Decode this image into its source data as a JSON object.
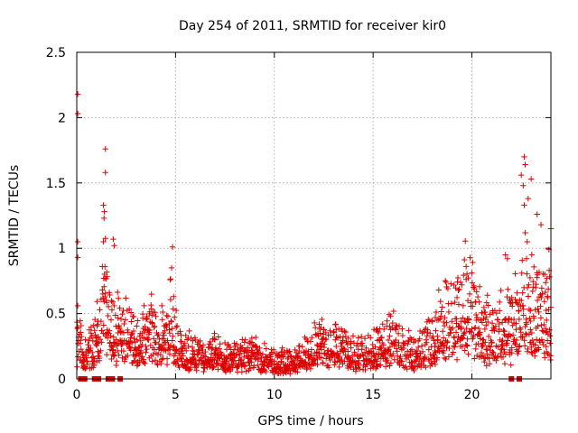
{
  "chart_data": {
    "type": "scatter",
    "title": "Day 254 of 2011, SRMTID for receiver kir0",
    "xlabel": "GPS time / hours",
    "ylabel": "SRMTID / TECUs",
    "xlim": [
      0,
      24
    ],
    "ylim": [
      0,
      2.5
    ],
    "xticks": [
      0,
      5,
      10,
      15,
      20
    ],
    "yticks": [
      0,
      0.5,
      1,
      1.5,
      2,
      2.5
    ],
    "grid": true,
    "marker": "+",
    "series": [
      {
        "name": "SRMTID",
        "color": "#dd0000",
        "points_note": "approximate reconstruction of dense scatter",
        "spikes": [
          [
            0.05,
            2.18
          ],
          [
            0.05,
            2.03
          ],
          [
            0.05,
            1.05
          ],
          [
            0.05,
            0.93
          ],
          [
            0.05,
            0.56
          ],
          [
            1.45,
            1.76
          ],
          [
            1.45,
            1.58
          ],
          [
            1.35,
            1.33
          ],
          [
            1.4,
            1.28
          ],
          [
            1.38,
            1.23
          ],
          [
            1.35,
            1.05
          ],
          [
            1.85,
            1.07
          ],
          [
            1.9,
            1.02
          ],
          [
            4.85,
            1.01
          ],
          [
            4.8,
            0.85
          ],
          [
            22.65,
            1.7
          ],
          [
            22.7,
            1.64
          ],
          [
            22.5,
            1.56
          ],
          [
            22.6,
            1.48
          ],
          [
            23.0,
            1.53
          ],
          [
            22.85,
            1.38
          ],
          [
            22.65,
            1.33
          ],
          [
            23.3,
            1.26
          ],
          [
            23.5,
            1.18
          ],
          [
            24.0,
            1.15
          ],
          [
            23.9,
            0.99
          ],
          [
            22.8,
            1.05
          ],
          [
            21.7,
            0.95
          ],
          [
            21.8,
            0.92
          ]
        ],
        "zero_markers": [
          0.2,
          0.4,
          0.9,
          1.1,
          1.6,
          1.8,
          2.2,
          22.0,
          22.4
        ]
      }
    ]
  }
}
